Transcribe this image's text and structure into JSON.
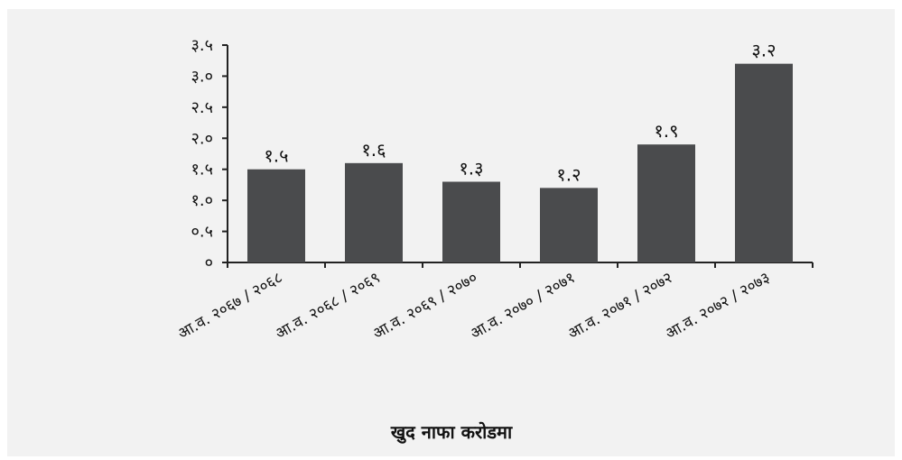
{
  "chart_data": {
    "type": "bar",
    "title": "",
    "xlabel": "खुद नाफा करोडमा",
    "ylabel": "",
    "ylim": [
      0,
      3.5
    ],
    "yticks": [
      0,
      0.5,
      1.0,
      1.5,
      2.0,
      2.5,
      3.0,
      3.5
    ],
    "ytick_labels": [
      "०",
      "०.५",
      "१.०",
      "१.५",
      "२.०",
      "२.५",
      "३.०",
      "३.५"
    ],
    "categories": [
      "आ.व. २०६७ / २०६८",
      "आ.व. २०६८ / २०६९",
      "आ.व. २०६९ / २०७०",
      "आ.व. २०७० / २०७१",
      "आ.व. २०७१ / २०७२",
      "आ.व. २०७२ / २०७३"
    ],
    "values": [
      1.5,
      1.6,
      1.3,
      1.2,
      1.9,
      3.2
    ],
    "data_labels": [
      "१.५",
      "१.६",
      "१.३",
      "१.२",
      "१.९",
      "३.२"
    ],
    "bar_color": "#4a4b4d",
    "background_color": "#f2f2f2",
    "grid": false,
    "legend": "none"
  }
}
